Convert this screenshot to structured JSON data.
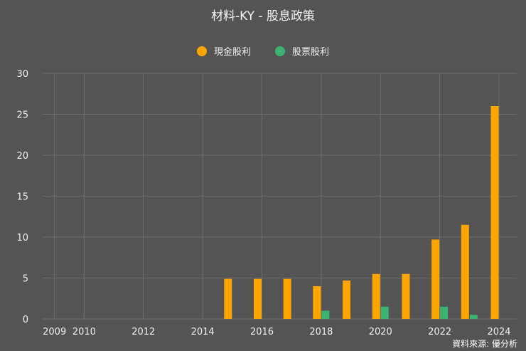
{
  "chart_data": {
    "type": "bar",
    "title": "材料-KY - 股息政策",
    "xlabel": "",
    "ylabel": "",
    "ylim": [
      0,
      30
    ],
    "yticks": [
      0,
      5,
      10,
      15,
      20,
      25,
      30
    ],
    "xlim": [
      2008.6,
      2024.6
    ],
    "xticks": [
      "2009",
      "2010",
      "2012",
      "2014",
      "2016",
      "2018",
      "2020",
      "2022",
      "2024"
    ],
    "grid": true,
    "legend_position": "top-center",
    "x": [
      2015,
      2016,
      2017,
      2018,
      2019,
      2020,
      2021,
      2022,
      2023,
      2024
    ],
    "series": [
      {
        "name": "現金股利",
        "color": "#FFA500",
        "values": [
          4.9,
          4.9,
          4.9,
          4.0,
          4.7,
          5.5,
          5.5,
          9.7,
          11.5,
          26.0
        ]
      },
      {
        "name": "股票股利",
        "color": "#3CB371",
        "values": [
          0,
          0,
          0,
          1.0,
          0,
          1.5,
          0,
          1.5,
          0.5,
          0
        ]
      }
    ]
  },
  "source_note": "資料來源: 優分析"
}
